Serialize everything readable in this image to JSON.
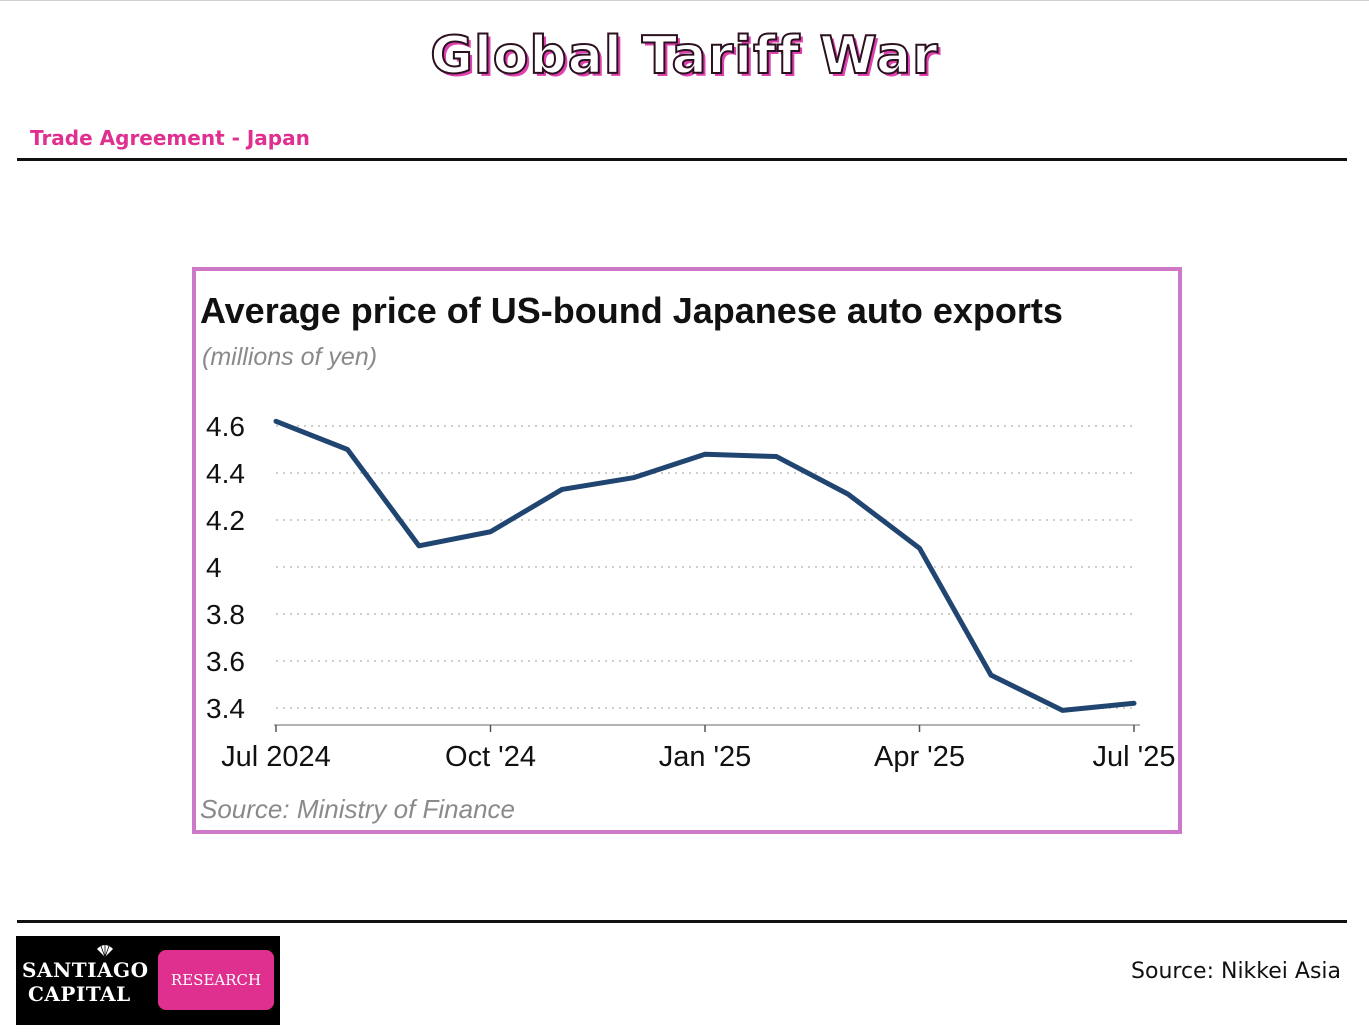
{
  "header": {
    "title": "Global Tariff War",
    "subtitle": "Trade Agreement - Japan"
  },
  "colors": {
    "accent": "#e0308f",
    "frame": "#cf78c8",
    "line": "#1f4570",
    "grid": "#bdbdbd"
  },
  "chart_data": {
    "type": "line",
    "title": "Average price of US-bound Japanese auto exports",
    "subtitle": "(millions of yen)",
    "source": "Source: Ministry of Finance",
    "x": [
      "2024-07",
      "2024-08",
      "2024-09",
      "2024-10",
      "2024-11",
      "2024-12",
      "2025-01",
      "2025-02",
      "2025-03",
      "2025-04",
      "2025-05",
      "2025-06",
      "2025-07"
    ],
    "x_tick_labels": [
      "Jul 2024",
      "Oct '24",
      "Jan '25",
      "Apr '25",
      "Jul '25"
    ],
    "x_tick_positions": [
      "2024-07",
      "2024-10",
      "2025-01",
      "2025-04",
      "2025-07"
    ],
    "y_tick_labels": [
      "4.6",
      "4.4",
      "4.2",
      "4",
      "3.8",
      "3.6",
      "3.4"
    ],
    "y_ticks": [
      4.6,
      4.4,
      4.2,
      4.0,
      3.8,
      3.6,
      3.4
    ],
    "ylim": [
      3.4,
      4.6
    ],
    "grid": "horizontal dotted",
    "series": [
      {
        "values": [
          4.62,
          4.5,
          4.09,
          4.15,
          4.33,
          4.38,
          4.48,
          4.47,
          4.31,
          4.08,
          3.54,
          3.39,
          3.42
        ]
      }
    ]
  },
  "footer": {
    "source": "Source: Nikkei Asia",
    "logo_line1": "SANTIAGO",
    "logo_line2": "CAPITAL",
    "logo_badge": "RESEARCH"
  }
}
